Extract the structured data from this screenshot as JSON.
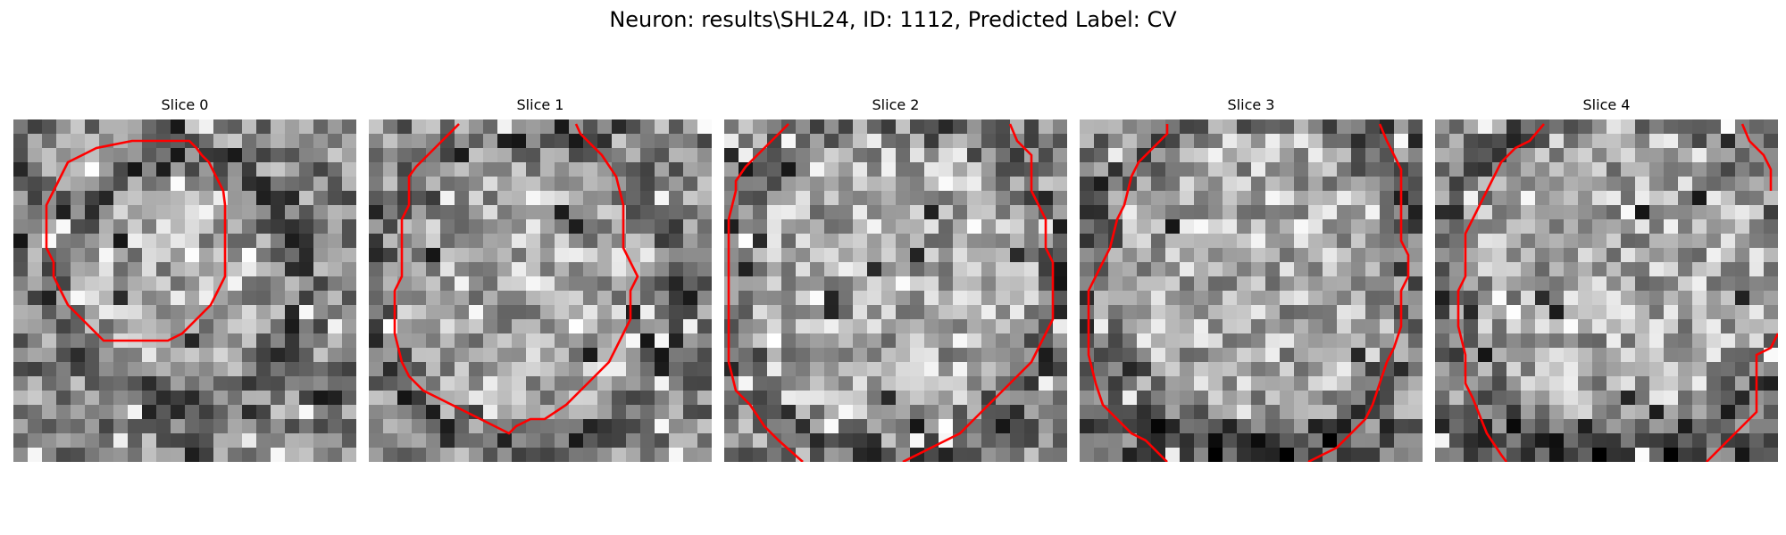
{
  "figure": {
    "title": "Neuron: results\\SHL24, ID: 1112, Predicted Label: CV",
    "contour_color": "#ff0000",
    "colormap": "grayscale",
    "slices": [
      {
        "title": "Slice 0"
      },
      {
        "title": "Slice 1"
      },
      {
        "title": "Slice 2"
      },
      {
        "title": "Slice 3"
      },
      {
        "title": "Slice 4"
      }
    ]
  }
}
